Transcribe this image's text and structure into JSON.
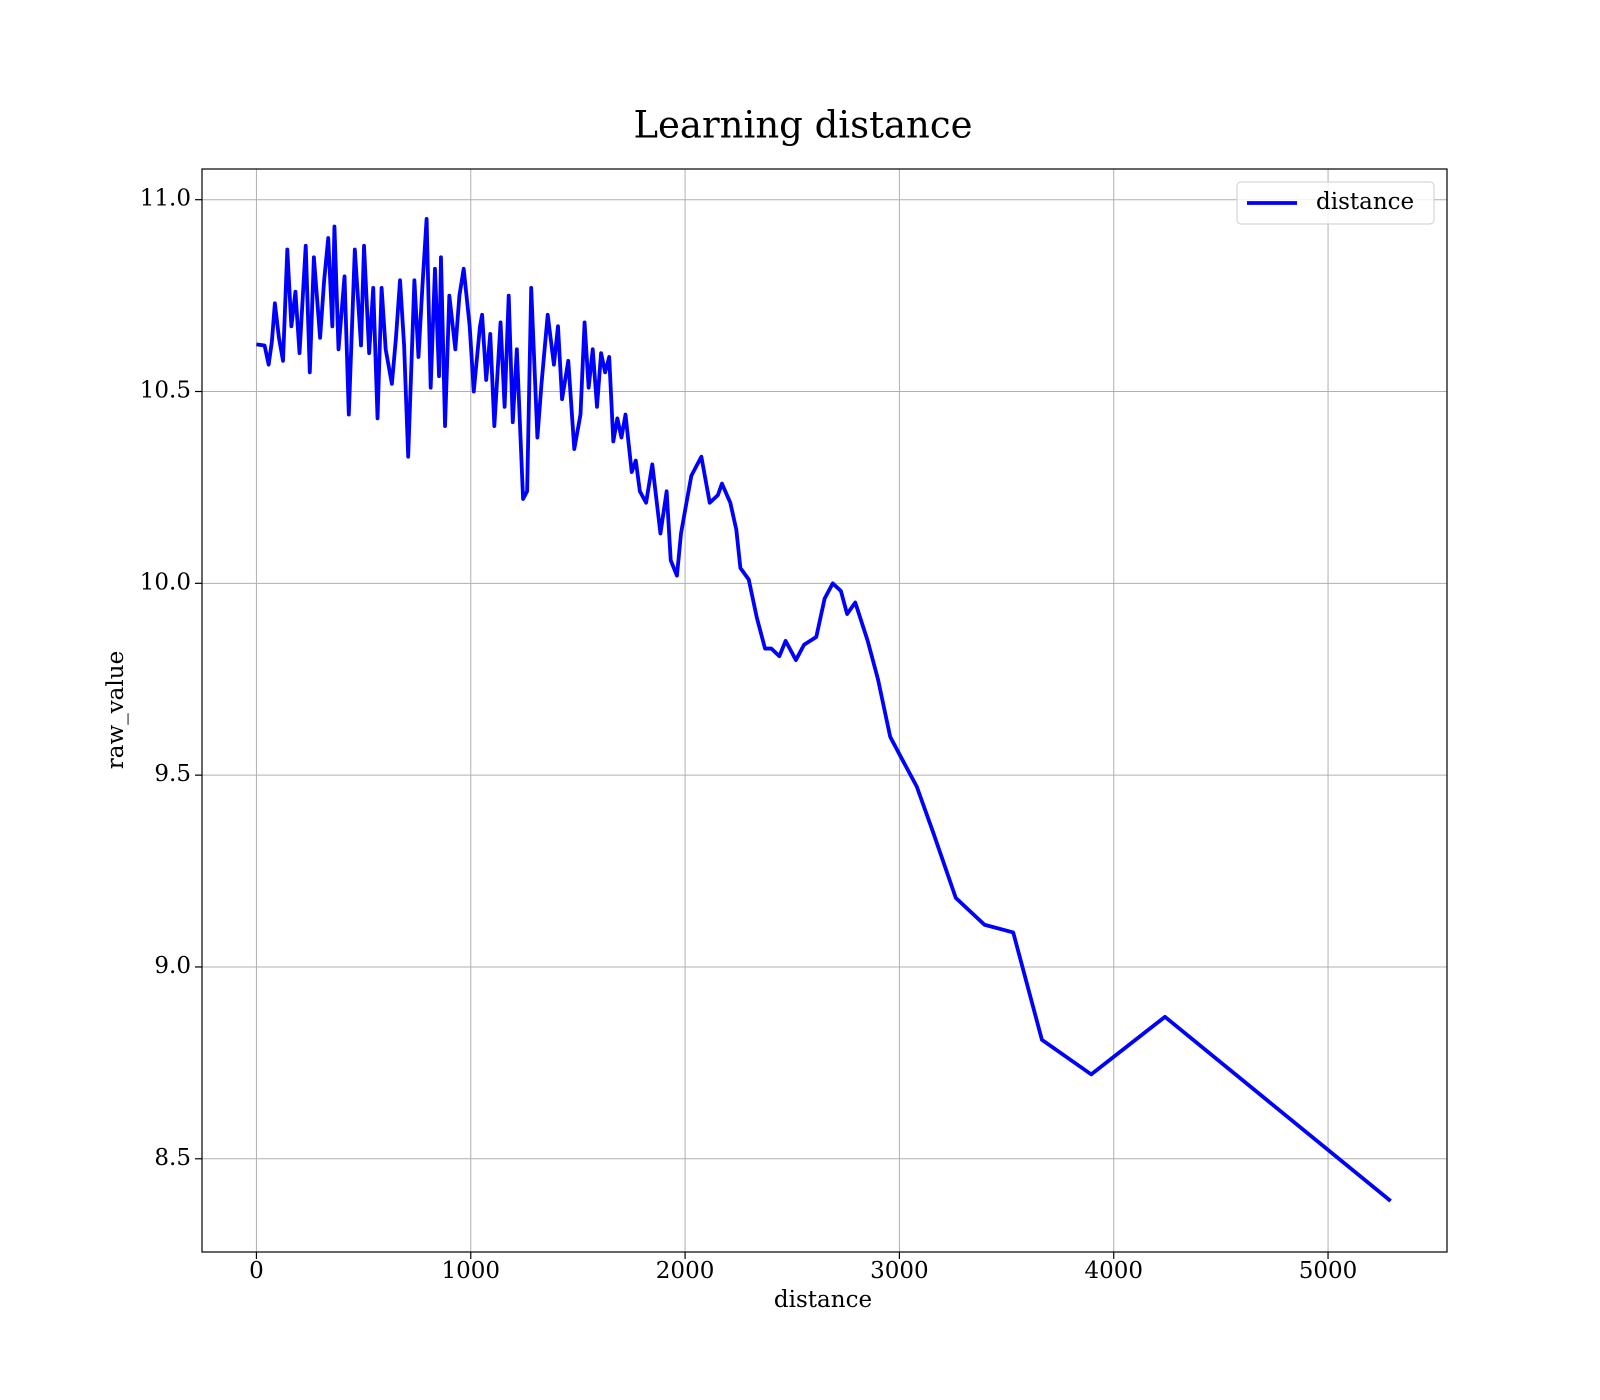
{
  "chart_data": {
    "type": "line",
    "title": "Learning distance",
    "x_label": "distance",
    "y_label": "raw_value",
    "x": [
      0,
      38,
      57,
      72,
      86,
      105,
      124,
      144,
      163,
      182,
      201,
      230,
      249,
      268,
      297,
      316,
      335,
      354,
      364,
      383,
      411,
      431,
      459,
      488,
      502,
      526,
      545,
      565,
      584,
      603,
      632,
      651,
      670,
      689,
      708,
      737,
      756,
      775,
      794,
      813,
      833,
      852,
      861,
      880,
      900,
      928,
      947,
      967,
      995,
      1014,
      1043,
      1053,
      1072,
      1091,
      1110,
      1139,
      1158,
      1177,
      1196,
      1215,
      1244,
      1263,
      1282,
      1311,
      1330,
      1359,
      1388,
      1407,
      1426,
      1455,
      1483,
      1512,
      1531,
      1550,
      1569,
      1589,
      1608,
      1627,
      1646,
      1665,
      1684,
      1703,
      1722,
      1751,
      1770,
      1789,
      1818,
      1847,
      1885,
      1914,
      1933,
      1962,
      1981,
      2000,
      2029,
      2057,
      2076,
      2115,
      2153,
      2172,
      2211,
      2239,
      2258,
      2297,
      2335,
      2373,
      2402,
      2440,
      2469,
      2517,
      2555,
      2612,
      2651,
      2689,
      2727,
      2756,
      2794,
      2852,
      2900,
      2957,
      3014,
      3081,
      3158,
      3263,
      3397,
      3531,
      3665,
      3895,
      4239,
      5292
    ],
    "series": [
      {
        "name": "distance",
        "color": "#0000ff",
        "values": [
          10.623,
          10.62,
          10.57,
          10.63,
          10.73,
          10.64,
          10.58,
          10.87,
          10.67,
          10.76,
          10.6,
          10.88,
          10.55,
          10.85,
          10.64,
          10.79,
          10.9,
          10.67,
          10.93,
          10.61,
          10.8,
          10.44,
          10.87,
          10.62,
          10.88,
          10.6,
          10.77,
          10.43,
          10.77,
          10.61,
          10.52,
          10.64,
          10.79,
          10.62,
          10.33,
          10.79,
          10.59,
          10.78,
          10.95,
          10.51,
          10.82,
          10.54,
          10.85,
          10.41,
          10.75,
          10.61,
          10.75,
          10.82,
          10.67,
          10.5,
          10.67,
          10.7,
          10.53,
          10.65,
          10.41,
          10.68,
          10.46,
          10.75,
          10.42,
          10.61,
          10.22,
          10.24,
          10.77,
          10.38,
          10.52,
          10.7,
          10.57,
          10.67,
          10.48,
          10.58,
          10.35,
          10.44,
          10.68,
          10.51,
          10.61,
          10.46,
          10.6,
          10.55,
          10.59,
          10.37,
          10.43,
          10.38,
          10.44,
          10.29,
          10.32,
          10.24,
          10.21,
          10.31,
          10.13,
          10.24,
          10.06,
          10.02,
          10.13,
          10.19,
          10.28,
          10.31,
          10.33,
          10.21,
          10.23,
          10.26,
          10.21,
          10.14,
          10.04,
          10.01,
          9.91,
          9.83,
          9.83,
          9.81,
          9.85,
          9.8,
          9.84,
          9.86,
          9.96,
          10.0,
          9.98,
          9.92,
          9.95,
          9.85,
          9.75,
          9.6,
          9.54,
          9.47,
          9.35,
          9.18,
          9.11,
          9.09,
          8.81,
          8.72,
          8.87,
          8.39
        ]
      }
    ],
    "xlim": [
      -254,
      5555
    ],
    "ylim": [
      8.257,
      11.08
    ],
    "xticks": [
      0,
      1000,
      2000,
      3000,
      4000,
      5000
    ],
    "yticks": [
      {
        "value": 8.5,
        "label": "8.5"
      },
      {
        "value": 9,
        "label": "9.0"
      },
      {
        "value": 9.5,
        "label": "9.5"
      },
      {
        "value": 10,
        "label": "10.0"
      },
      {
        "value": 10.5,
        "label": "10.5"
      },
      {
        "value": 11,
        "label": "11.0"
      }
    ],
    "grid": true,
    "legend": "upper right"
  }
}
